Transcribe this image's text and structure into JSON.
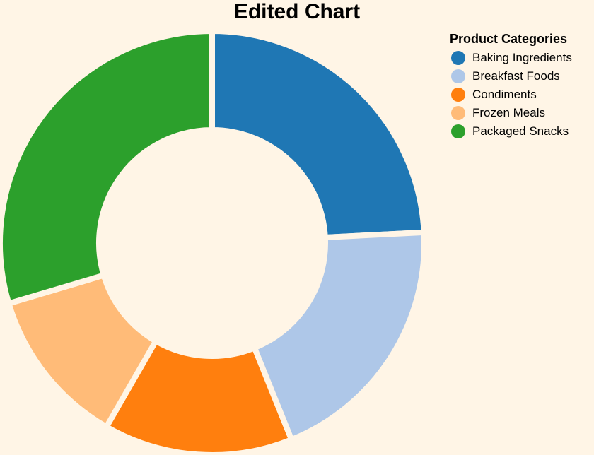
{
  "chart_data": {
    "type": "pie",
    "title": "Edited Chart",
    "legend": {
      "title": "Product Categories",
      "placement": "top-right"
    },
    "slices": [
      {
        "label": "Baking Ingredients",
        "value": 24.2,
        "color": "#1f77b4"
      },
      {
        "label": "Breakfast Foods",
        "value": 19.7,
        "color": "#aec7e8"
      },
      {
        "label": "Condiments",
        "value": 14.4,
        "color": "#ff7f0e"
      },
      {
        "label": "Frozen Meals",
        "value": 12.1,
        "color": "#ffbb78"
      },
      {
        "label": "Packaged Snacks",
        "value": 29.6,
        "color": "#2ca02c"
      }
    ]
  }
}
